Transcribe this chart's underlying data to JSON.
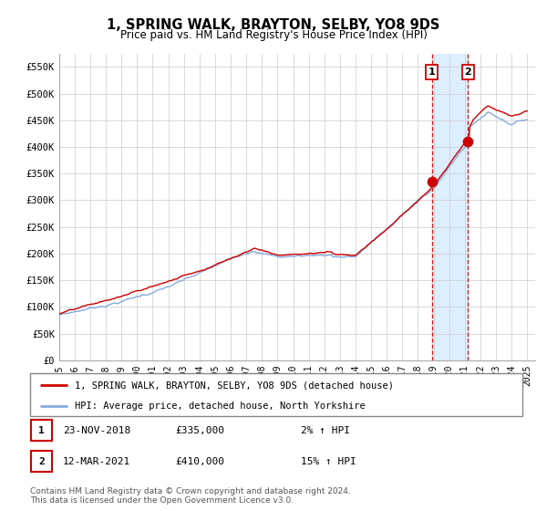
{
  "title": "1, SPRING WALK, BRAYTON, SELBY, YO8 9DS",
  "subtitle": "Price paid vs. HM Land Registry's House Price Index (HPI)",
  "title_fontsize": 10.5,
  "subtitle_fontsize": 8.5,
  "ylabel_ticks": [
    "£0",
    "£50K",
    "£100K",
    "£150K",
    "£200K",
    "£250K",
    "£300K",
    "£350K",
    "£400K",
    "£450K",
    "£500K",
    "£550K"
  ],
  "ytick_values": [
    0,
    50000,
    100000,
    150000,
    200000,
    250000,
    300000,
    350000,
    400000,
    450000,
    500000,
    550000
  ],
  "ylim": [
    0,
    575000
  ],
  "xlim_start": 1995.0,
  "xlim_end": 2025.5,
  "point1_x": 2018.9,
  "point1_y": 335000,
  "point2_x": 2021.2,
  "point2_y": 410000,
  "dashed_line1_x": 2018.9,
  "dashed_line2_x": 2021.2,
  "shade_start": 2018.9,
  "shade_end": 2021.2,
  "shade_color": "#ddeeff",
  "red_line_color": "#cc0000",
  "blue_line_color": "#88aadd",
  "point_color": "#cc0000",
  "grid_color": "#cccccc",
  "bg_color": "#ffffff",
  "legend_label1": "1, SPRING WALK, BRAYTON, SELBY, YO8 9DS (detached house)",
  "legend_label2": "HPI: Average price, detached house, North Yorkshire",
  "table_row1": [
    "1",
    "23-NOV-2018",
    "£335,000",
    "2% ↑ HPI"
  ],
  "table_row2": [
    "2",
    "12-MAR-2021",
    "£410,000",
    "15% ↑ HPI"
  ],
  "footer": "Contains HM Land Registry data © Crown copyright and database right 2024.\nThis data is licensed under the Open Government Licence v3.0.",
  "xtick_years": [
    1995,
    1996,
    1997,
    1998,
    1999,
    2000,
    2001,
    2002,
    2003,
    2004,
    2005,
    2006,
    2007,
    2008,
    2009,
    2010,
    2011,
    2012,
    2013,
    2014,
    2015,
    2016,
    2017,
    2018,
    2019,
    2020,
    2021,
    2022,
    2023,
    2024,
    2025
  ]
}
